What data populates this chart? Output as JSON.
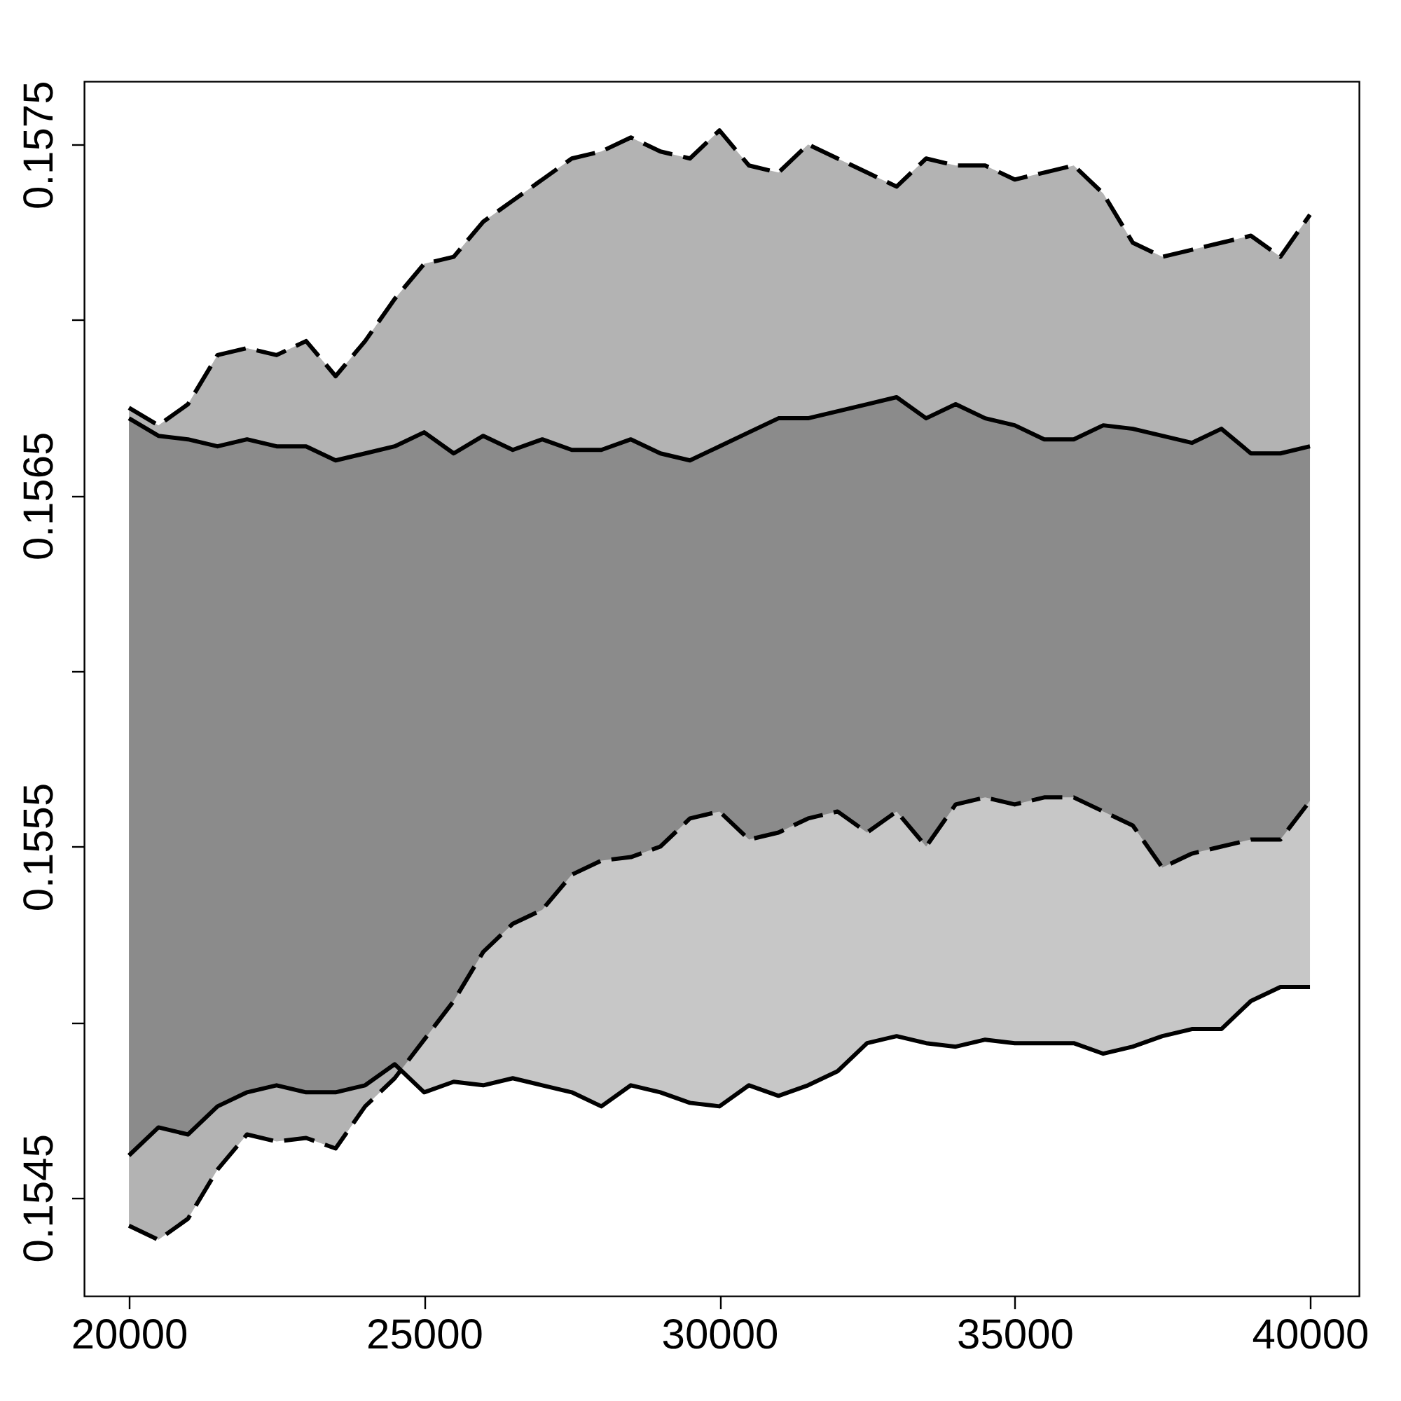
{
  "chart_data": {
    "type": "area",
    "x": [
      20000,
      20500,
      21000,
      21500,
      22000,
      22500,
      23000,
      23500,
      24000,
      24500,
      25000,
      25500,
      26000,
      26500,
      27000,
      27500,
      28000,
      28500,
      29000,
      29500,
      30000,
      30500,
      31000,
      31500,
      32000,
      32500,
      33000,
      33500,
      34000,
      34500,
      35000,
      35500,
      36000,
      36500,
      37000,
      37500,
      38000,
      38500,
      39000,
      39500,
      40000
    ],
    "series": [
      {
        "color": "#b3b3b3",
        "line_style": "dashed",
        "values": [
          0.15675,
          0.1567,
          0.15676,
          0.1569,
          0.15692,
          0.1569,
          0.15694,
          0.15684,
          0.15694,
          0.15706,
          0.15716,
          0.15718,
          0.15728,
          0.15734,
          0.1574,
          0.15746,
          0.15748,
          0.15752,
          0.15748,
          0.15746,
          0.15754,
          0.15744,
          0.15742,
          0.1575,
          0.15746,
          0.15742,
          0.15738,
          0.15746,
          0.15744,
          0.15744,
          0.1574,
          0.15742,
          0.15744,
          0.15736,
          0.15722,
          0.15718,
          0.1572,
          0.15722,
          0.15724,
          0.15718,
          0.1573
        ]
      },
      {
        "type": "line",
        "color": "#000000",
        "line_style": "dashed",
        "values": [
          0.15442,
          0.15438,
          0.15444,
          0.15458,
          0.15468,
          0.15466,
          0.15467,
          0.15464,
          0.15476,
          0.15484,
          0.15495,
          0.15506,
          0.1552,
          0.15528,
          0.15532,
          0.15542,
          0.15546,
          0.15547,
          0.1555,
          0.15558,
          0.1556,
          0.15552,
          0.15554,
          0.15558,
          0.1556,
          0.15554,
          0.1556,
          0.1555,
          0.15562,
          0.15564,
          0.15562,
          0.15564,
          0.15564,
          0.1556,
          0.15556,
          0.15544,
          0.15548,
          0.1555,
          0.15552,
          0.15552,
          0.15563
        ]
      },
      {
        "color": "#000000",
        "line_style": "solid",
        "values": [
          0.15672,
          0.15667,
          0.15666,
          0.15664,
          0.15666,
          0.15664,
          0.15664,
          0.1566,
          0.15662,
          0.15664,
          0.15668,
          0.15662,
          0.15667,
          0.15663,
          0.15666,
          0.15663,
          0.15663,
          0.15666,
          0.15662,
          0.1566,
          0.15664,
          0.15668,
          0.15672,
          0.15672,
          0.15674,
          0.15676,
          0.15678,
          0.15672,
          0.15676,
          0.15672,
          0.1567,
          0.15666,
          0.15666,
          0.1567,
          0.15669,
          0.15667,
          0.15665,
          0.15669,
          0.15662,
          0.15662,
          0.15664
        ]
      },
      {
        "type": "line",
        "color": "#000000",
        "line_style": "solid",
        "values": [
          0.15462,
          0.1547,
          0.15468,
          0.15476,
          0.1548,
          0.15482,
          0.1548,
          0.1548,
          0.15482,
          0.15488,
          0.1548,
          0.15483,
          0.15482,
          0.15484,
          0.15482,
          0.1548,
          0.15476,
          0.15482,
          0.1548,
          0.15477,
          0.15476,
          0.15482,
          0.15479,
          0.15482,
          0.15486,
          0.15494,
          0.15496,
          0.15494,
          0.15493,
          0.15495,
          0.15494,
          0.15494,
          0.15494,
          0.15491,
          0.15493,
          0.15496,
          0.15498,
          0.15498,
          0.15506,
          0.1551,
          0.1551
        ]
      }
    ],
    "xlim": [
      19240,
      40830
    ],
    "ylim": [
      0.15422,
      0.15768
    ],
    "xticks": [
      20000,
      25000,
      30000,
      35000,
      40000
    ],
    "yticks": [
      0.1545,
      {
        "value": 0.155,
        "label": null
      },
      0.1555,
      {
        "value": 0.156,
        "label": null
      },
      0.1565,
      {
        "value": 0.157,
        "label": null
      },
      0.1575
    ],
    "grid": false
  }
}
